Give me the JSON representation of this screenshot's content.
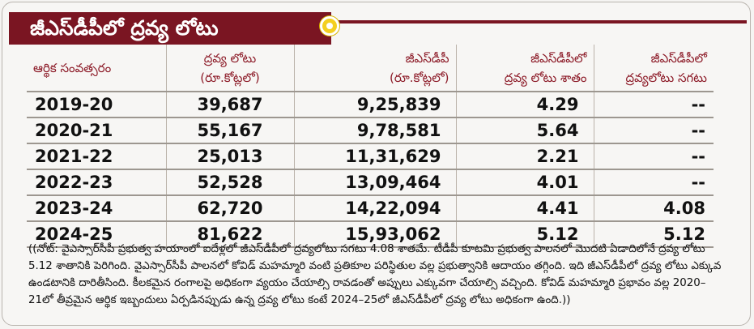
{
  "title": "జీఎస్‌డీపీలో ద్రవ్య లోటు",
  "table": {
    "headers": {
      "year": "ఆర్థిక సంవత్సరం",
      "deficit": [
        "ద్రవ్య లోటు",
        "(రూ.కోట్లలో)"
      ],
      "gsdp": [
        "జీఎస్‌డీపీ",
        "(రూ.కోట్లలో)"
      ],
      "pct": [
        "జీఎస్‌డీపీలో",
        "ద్రవ్య లోటు శాతం"
      ],
      "avg": [
        "జీఎస్‌డీపీలో",
        "ద్రవ్యలోటు సగటు"
      ]
    },
    "rows": [
      {
        "year": "2019-20",
        "deficit": "39,687",
        "gsdp": "9,25,839",
        "pct": "4.29",
        "avg": "--"
      },
      {
        "year": "2020-21",
        "deficit": "55,167",
        "gsdp": "9,78,581",
        "pct": "5.64",
        "avg": "--"
      },
      {
        "year": "2021-22",
        "deficit": "25,013",
        "gsdp": "11,31,629",
        "pct": "2.21",
        "avg": "--"
      },
      {
        "year": "2022-23",
        "deficit": "52,528",
        "gsdp": "13,09,464",
        "pct": "4.01",
        "avg": "--"
      },
      {
        "year": "2023-24",
        "deficit": "62,720",
        "gsdp": "14,22,094",
        "pct": "4.41",
        "avg": "4.08"
      },
      {
        "year": "2024-25",
        "deficit": "81,622",
        "gsdp": "15,93,062",
        "pct": "5.12",
        "avg": "5.12"
      }
    ]
  },
  "note": "((నోట్‌: వైఎస్సార్‌సీపీ ప్రభుత్వ హయాంలో ఐదేళ్లలో జీఎస్‌డీపీలో ద్రవ్యలోటు సగటు 4.08 శాతమే. టీడీపీ కూటమి ప్రభుత్వ పాలనలో మొదటి ఏడాదిలోనే ద్రవ్య లోటు 5.12 శాతానికి పెరిగింది. వైఎస్సార్‌సీపీ పాలనలో కోవిడ్‌ మహమ్మారి వంటి ప్రతికూల పరిస్థితుల వల్ల ప్రభుత్వానికి ఆదాయం తగ్గింది. ఇది జీఎస్‌డీపీలో ద్రవ్య లోటు ఎక్కువ ఉండటానికి దారితీసింది. కీలకమైన రంగాలపై అధికంగా వ్యయం చేయాల్సి రావడంతో అప్పులు ఎక్కువగా చేయాల్సి వచ్చింది. కోవిడ్‌ మహమ్మారి ప్రభావం వల్ల 2020–21లో తీవ్రమైన ఆర్థిక ఇబ్బందులు ఏర్పడినప్పుడు ఉన్న ద్రవ్య లోటు కంటే 2024–25లో జీఎస్‌డీపీలో ద్రవ్య లోటు అధికంగా ఉంది.))",
  "colors": {
    "banner": "#7a1522",
    "header_text": "#8c1a27",
    "dot": "#f3cf20"
  }
}
